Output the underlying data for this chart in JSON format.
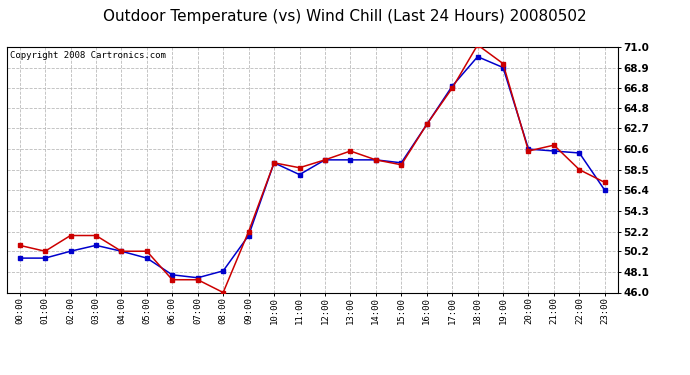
{
  "title": "Outdoor Temperature (vs) Wind Chill (Last 24 Hours) 20080502",
  "copyright": "Copyright 2008 Cartronics.com",
  "x_labels": [
    "00:00",
    "01:00",
    "02:00",
    "03:00",
    "04:00",
    "05:00",
    "06:00",
    "07:00",
    "08:00",
    "09:00",
    "10:00",
    "11:00",
    "12:00",
    "13:00",
    "14:00",
    "15:00",
    "16:00",
    "17:00",
    "18:00",
    "19:00",
    "20:00",
    "21:00",
    "22:00",
    "23:00"
  ],
  "temp": [
    50.8,
    50.2,
    51.8,
    51.8,
    50.2,
    50.2,
    47.3,
    47.3,
    46.0,
    52.2,
    59.2,
    58.7,
    59.5,
    60.4,
    59.5,
    59.0,
    63.1,
    66.8,
    71.2,
    69.3,
    60.4,
    61.0,
    58.5,
    57.2
  ],
  "wind_chill": [
    49.5,
    49.5,
    50.2,
    50.8,
    50.2,
    49.5,
    47.8,
    47.5,
    48.2,
    51.8,
    59.2,
    58.0,
    59.5,
    59.5,
    59.5,
    59.2,
    63.1,
    67.0,
    70.0,
    68.9,
    60.6,
    60.4,
    60.2,
    56.4
  ],
  "temp_color": "#cc0000",
  "wind_chill_color": "#0000cc",
  "bg_color": "#ffffff",
  "plot_bg_color": "#ffffff",
  "grid_color": "#bbbbbb",
  "ylim": [
    46.0,
    71.0
  ],
  "yticks": [
    46.0,
    48.1,
    50.2,
    52.2,
    54.3,
    56.4,
    58.5,
    60.6,
    62.7,
    64.8,
    66.8,
    68.9,
    71.0
  ],
  "ytick_labels": [
    "46.0",
    "48.1",
    "50.2",
    "52.2",
    "54.3",
    "56.4",
    "58.5",
    "60.6",
    "62.7",
    "64.8",
    "66.8",
    "68.9",
    "71.0"
  ],
  "title_fontsize": 11,
  "copyright_fontsize": 6.5,
  "marker_size": 3.5,
  "linewidth": 1.1
}
